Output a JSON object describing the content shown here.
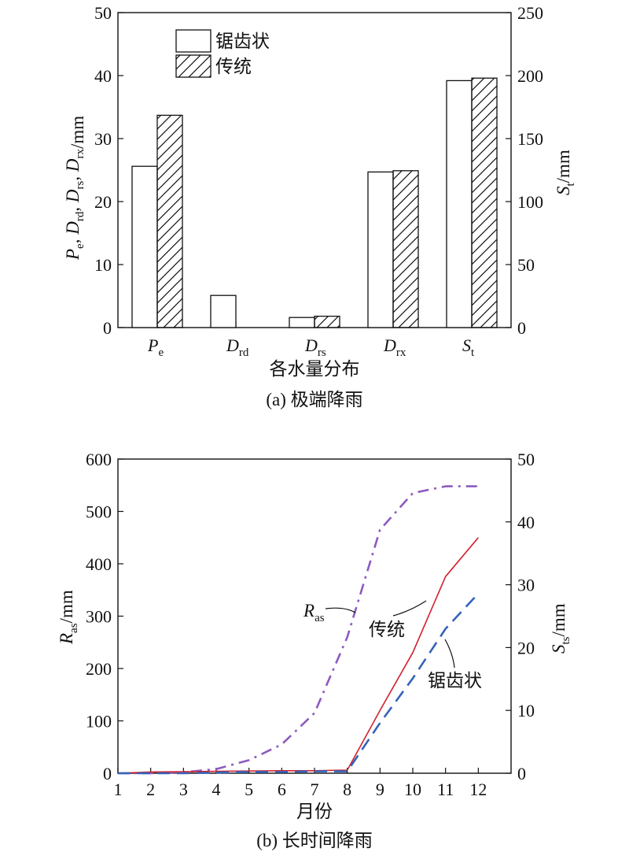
{
  "chart_data": [
    {
      "type": "bar",
      "caption": "(a) 极端降雨",
      "xlabel": "各水量分布",
      "ylabel_left": {
        "parts": [
          [
            "P",
            "e"
          ],
          [
            "D",
            "rd"
          ],
          [
            "D",
            "rs"
          ],
          [
            "D",
            "rx"
          ]
        ],
        "unit": "/mm"
      },
      "ylabel_right": {
        "sym": "S",
        "sub": "t",
        "unit": "/mm"
      },
      "categories": [
        {
          "sym": "P",
          "sub": "e"
        },
        {
          "sym": "D",
          "sub": "rd"
        },
        {
          "sym": "D",
          "sub": "rs"
        },
        {
          "sym": "D",
          "sub": "rx"
        },
        {
          "sym": "S",
          "sub": "t"
        }
      ],
      "series": [
        {
          "name": "锯齿状",
          "pattern": "plain",
          "values": [
            25.6,
            5.1,
            1.6,
            24.7,
            39.2
          ],
          "right_axis_values": [
            null,
            null,
            null,
            null,
            196
          ]
        },
        {
          "name": "传统",
          "pattern": "hatch",
          "values": [
            33.7,
            null,
            1.8,
            24.9,
            39.6
          ],
          "right_axis_values": [
            null,
            null,
            null,
            null,
            198
          ]
        }
      ],
      "ylim_left": [
        0,
        50
      ],
      "yticks_left": [
        "0",
        "10",
        "20",
        "30",
        "40",
        "50"
      ],
      "ylim_right": [
        0,
        250
      ],
      "yticks_right": [
        "0",
        "50",
        "100",
        "150",
        "200",
        "250"
      ],
      "legend_position": "top-left"
    },
    {
      "type": "line",
      "caption": "(b) 长时间降雨",
      "xlabel": "月份",
      "ylabel_left": {
        "sym": "R",
        "sub": "as",
        "unit": "/mm"
      },
      "ylabel_right": {
        "sym": "S",
        "sub": "ts",
        "unit": "/mm"
      },
      "x": [
        1,
        2,
        3,
        4,
        5,
        6,
        7,
        8,
        9,
        10,
        11,
        12
      ],
      "xticks": [
        "1",
        "2",
        "3",
        "4",
        "5",
        "6",
        "7",
        "8",
        "9",
        "10",
        "11",
        "12"
      ],
      "ylim_left": [
        0,
        600
      ],
      "yticks_left": [
        "0",
        "100",
        "200",
        "300",
        "400",
        "500",
        "600"
      ],
      "ylim_right": [
        0,
        50
      ],
      "yticks_right": [
        "0",
        "10",
        "20",
        "30",
        "40",
        "50"
      ],
      "series": [
        {
          "name": "Ras",
          "label": {
            "sym": "R",
            "sub": "as"
          },
          "axis": "left",
          "color": "#8c5bbf",
          "dash": "dash-dot",
          "values": [
            0,
            0,
            2,
            8,
            25,
            55,
            115,
            260,
            465,
            535,
            548,
            548
          ]
        },
        {
          "name": "传统",
          "label": {
            "text": "传统"
          },
          "axis": "right",
          "color": "#d2202e",
          "dash": "solid",
          "values": [
            0,
            0.2,
            0.25,
            0.3,
            0.35,
            0.4,
            0.4,
            0.5,
            10.0,
            19.2,
            31.3,
            37.5
          ]
        },
        {
          "name": "锯齿状",
          "label": {
            "text": "锯齿状"
          },
          "axis": "right",
          "color": "#3563b8",
          "dash": "dashed",
          "values": [
            0,
            0,
            0,
            0.1,
            0.2,
            0.2,
            0.3,
            0.3,
            8.0,
            15.1,
            23.0,
            28.6
          ]
        }
      ]
    }
  ]
}
